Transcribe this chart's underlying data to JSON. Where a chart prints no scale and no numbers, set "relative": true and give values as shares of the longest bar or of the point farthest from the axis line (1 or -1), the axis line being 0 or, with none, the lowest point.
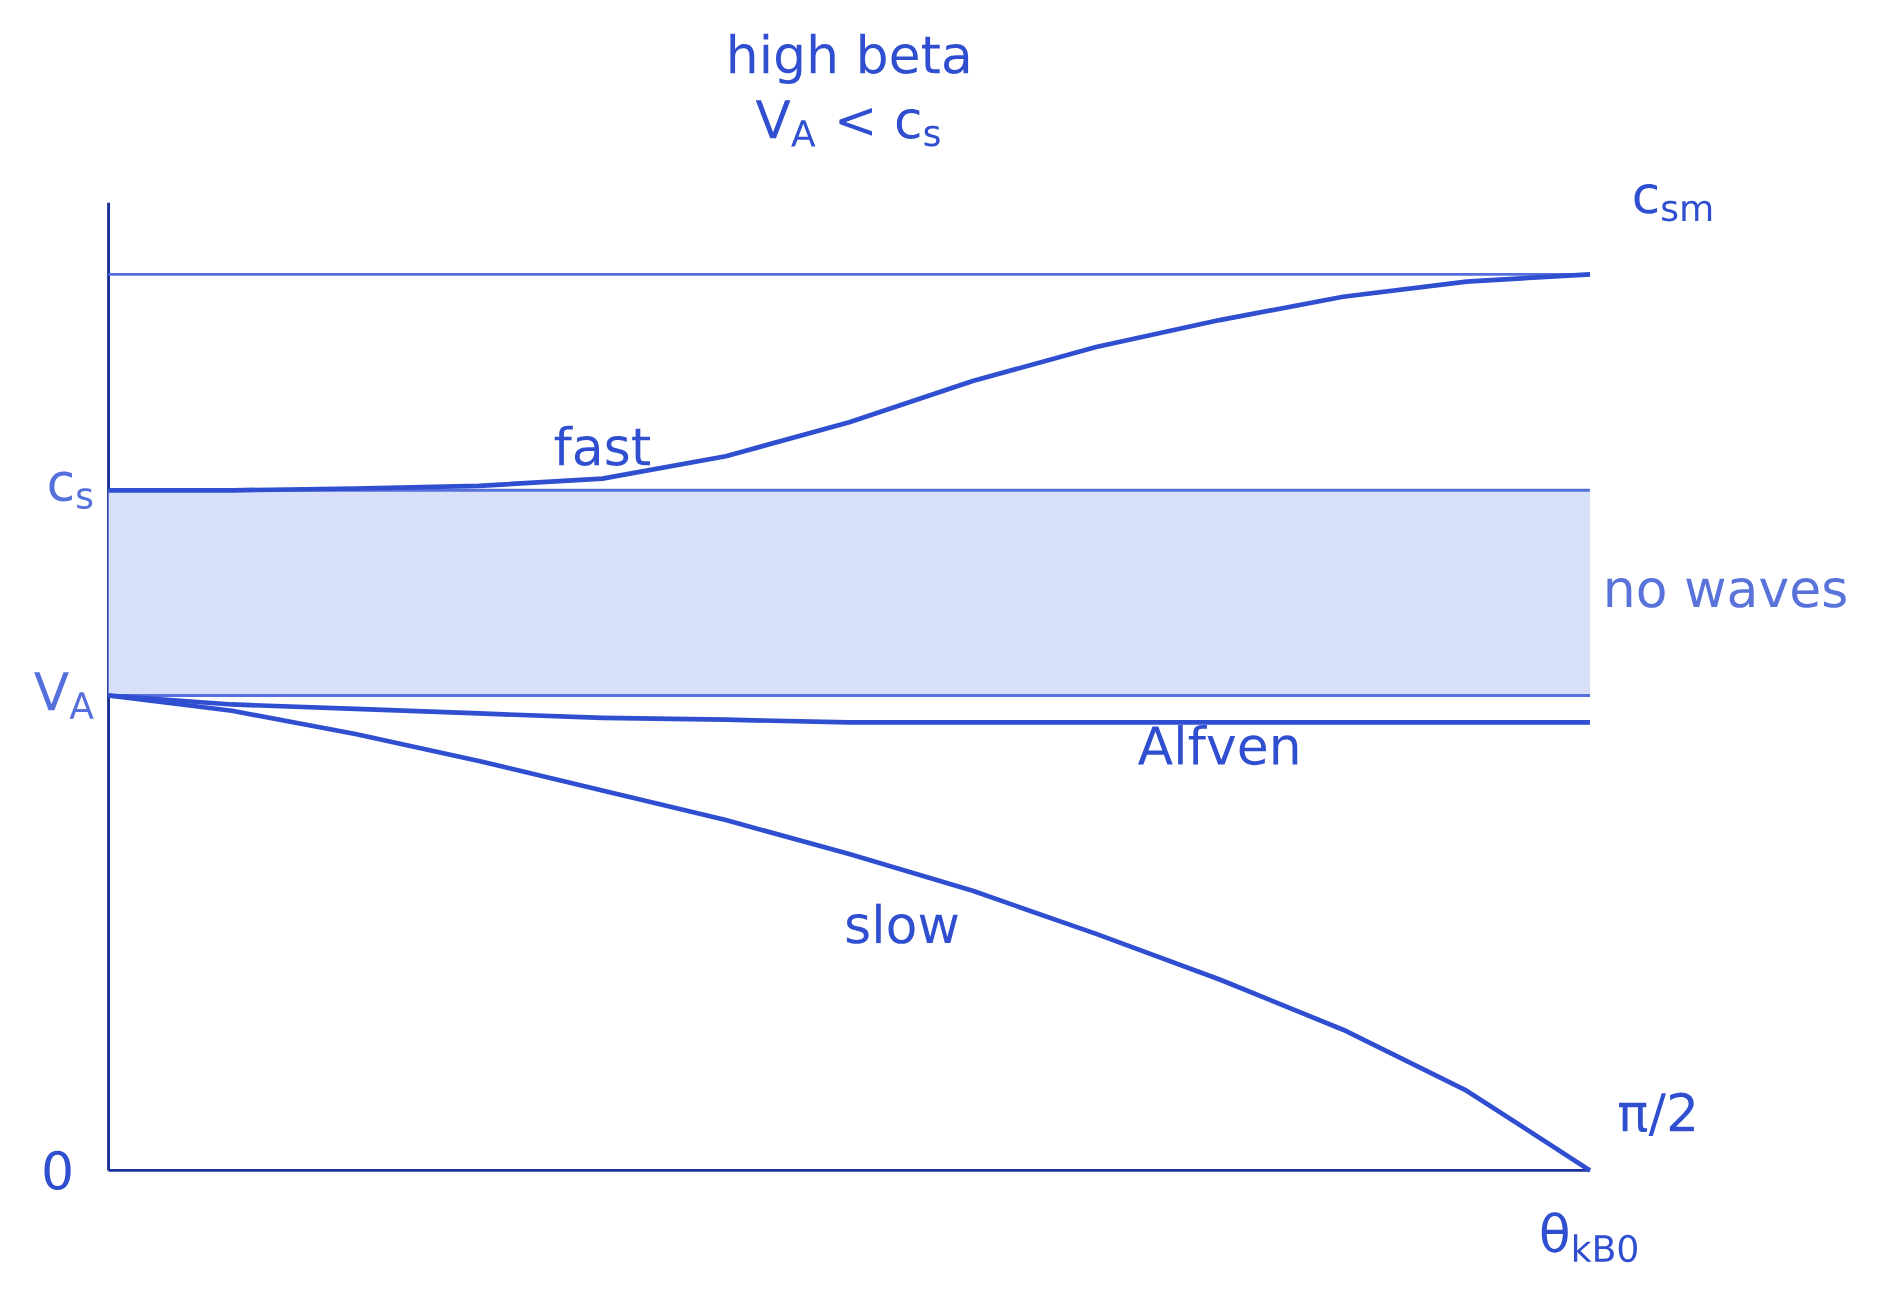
{
  "chart_data": {
    "type": "line",
    "title": "high beta",
    "subtitle": "V$_{A}$ < c$_{s}$",
    "xlabel": "θ$_{kB0}$",
    "relative": true,
    "legend": false,
    "grid": false,
    "marker": "none",
    "line_style": "solid",
    "categories": [
      null,
      null,
      null,
      null,
      null,
      null,
      null,
      null,
      null,
      null,
      null,
      null,
      null
    ],
    "series": [
      {
        "name": "fast",
        "color": "#2f4fd0",
        "values": [
          0.759,
          0.759,
          0.761,
          0.764,
          0.772,
          0.797,
          0.835,
          0.881,
          0.919,
          0.949,
          0.975,
          0.992,
          1.0
        ]
      },
      {
        "name": "Alfven",
        "color": "#2f4fd0",
        "values": [
          0.53,
          0.52,
          0.515,
          0.51,
          0.505,
          0.503,
          0.5,
          0.5,
          0.5,
          0.5,
          0.5,
          0.5,
          0.5
        ]
      },
      {
        "name": "slow",
        "color": "#2f4fd0",
        "values": [
          0.53,
          0.513,
          0.487,
          0.457,
          0.424,
          0.391,
          0.353,
          0.312,
          0.264,
          0.213,
          0.157,
          0.089,
          0.0
        ]
      }
    ],
    "ref_lines": [
      {
        "axis": "y",
        "value": 1.0,
        "color": "#5570dc"
      },
      {
        "axis": "y",
        "value": 0.759,
        "label": "c$_{s}$",
        "color": "#5570dc"
      },
      {
        "axis": "y",
        "value": 0.53,
        "label": "V$_{A}$",
        "color": "#5570dc"
      }
    ],
    "bands": [
      {
        "axis": "y",
        "from": 0.53,
        "to": 0.759,
        "label": "no waves",
        "color": "#d8dff8"
      }
    ],
    "annotations": [
      "c$_{sm}$",
      "0",
      "π/2"
    ]
  }
}
